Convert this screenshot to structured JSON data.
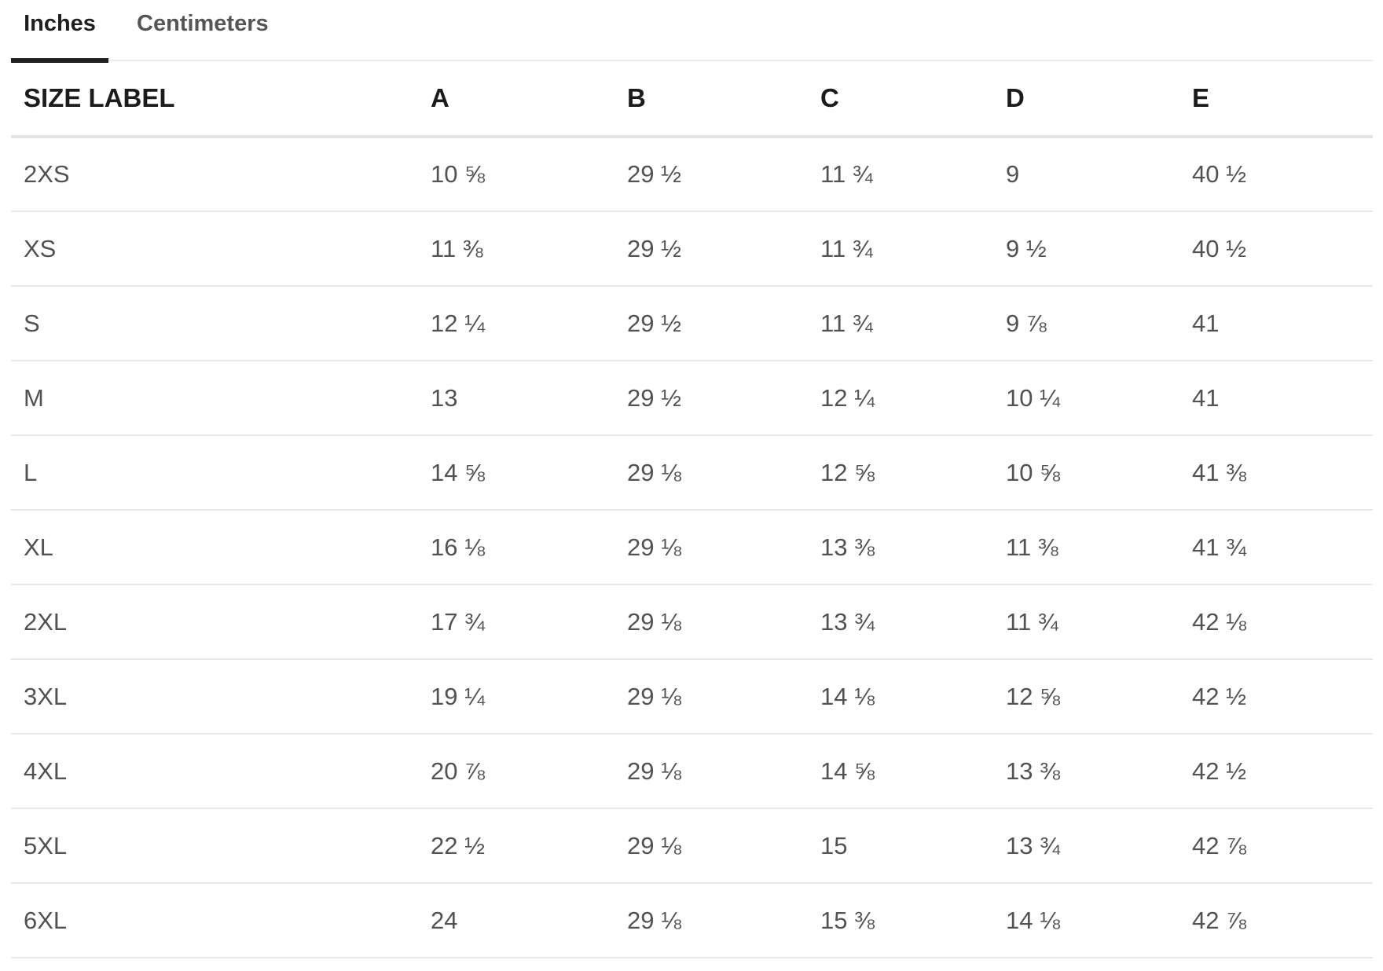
{
  "tabs": [
    {
      "label": "Inches",
      "active": true
    },
    {
      "label": "Centimeters",
      "active": false
    }
  ],
  "table": {
    "headers": [
      "SIZE LABEL",
      "A",
      "B",
      "C",
      "D",
      "E"
    ],
    "rows": [
      [
        "2XS",
        "10 ⅝",
        "29 ½",
        "11 ¾",
        "9",
        "40 ½"
      ],
      [
        "XS",
        "11 ⅜",
        "29 ½",
        "11 ¾",
        "9 ½",
        "40 ½"
      ],
      [
        "S",
        "12 ¼",
        "29 ½",
        "11 ¾",
        "9 ⅞",
        "41"
      ],
      [
        "M",
        "13",
        "29 ½",
        "12 ¼",
        "10 ¼",
        "41"
      ],
      [
        "L",
        "14 ⅝",
        "29 ⅛",
        "12 ⅝",
        "10 ⅝",
        "41 ⅜"
      ],
      [
        "XL",
        "16 ⅛",
        "29 ⅛",
        "13 ⅜",
        "11 ⅜",
        "41 ¾"
      ],
      [
        "2XL",
        "17 ¾",
        "29 ⅛",
        "13 ¾",
        "11 ¾",
        "42 ⅛"
      ],
      [
        "3XL",
        "19 ¼",
        "29 ⅛",
        "14 ⅛",
        "12 ⅝",
        "42 ½"
      ],
      [
        "4XL",
        "20 ⅞",
        "29 ⅛",
        "14 ⅝",
        "13 ⅜",
        "42 ½"
      ],
      [
        "5XL",
        "22 ½",
        "29 ⅛",
        "15",
        "13 ¾",
        "42 ⅞"
      ],
      [
        "6XL",
        "24",
        "29 ⅛",
        "15 ⅜",
        "14 ⅛",
        "42 ⅞"
      ]
    ]
  }
}
